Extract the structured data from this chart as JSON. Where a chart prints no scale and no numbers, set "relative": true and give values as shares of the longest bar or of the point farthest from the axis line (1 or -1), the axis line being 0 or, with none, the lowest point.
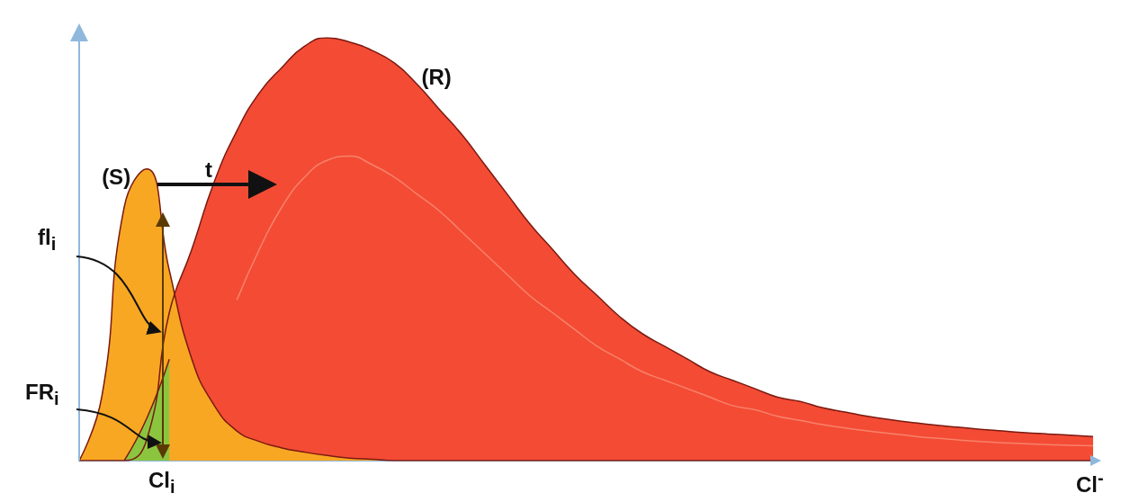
{
  "chart_data": {
    "type": "area",
    "relative": true,
    "xlabel": "Cl$^{-}$",
    "marker": "none",
    "categories": [
      null,
      null,
      null,
      null,
      null,
      null,
      null,
      null,
      null,
      null,
      null,
      null,
      null,
      null,
      null,
      null,
      null,
      null,
      null,
      null,
      null,
      null,
      null,
      null,
      null,
      null,
      null,
      null,
      null,
      null,
      null,
      null,
      null,
      null,
      null,
      null,
      null,
      null,
      null,
      null,
      null,
      null,
      null,
      null,
      null,
      null
    ],
    "series": [
      {
        "name": "(R)",
        "color": "#f44b35",
        "values": [
          0,
          0,
          0,
          0.05,
          0.35,
          0.5,
          0.66,
          0.78,
          0.87,
          0.93,
          0.98,
          1,
          0.99,
          0.97,
          0.94,
          0.89,
          0.83,
          0.77,
          0.7,
          0.63,
          0.56,
          0.5,
          0.44,
          0.39,
          0.34,
          0.3,
          0.27,
          0.24,
          0.21,
          0.19,
          0.17,
          0.15,
          0.14,
          0.125,
          0.115,
          0.105,
          0.097,
          0.09,
          0.084,
          0.079,
          0.074,
          0.07,
          0.066,
          0.063,
          0.06,
          0.057
        ]
      },
      {
        "type": "line",
        "color": "#f7836a",
        "values": [
          null,
          null,
          null,
          null,
          null,
          null,
          null,
          0.38,
          0.5,
          0.6,
          0.67,
          0.71,
          0.72,
          0.7,
          0.67,
          0.63,
          0.59,
          0.54,
          0.49,
          0.44,
          0.39,
          0.35,
          0.31,
          0.27,
          0.24,
          0.21,
          0.19,
          0.17,
          0.15,
          0.13,
          0.12,
          0.105,
          0.095,
          0.085,
          0.077,
          0.07,
          0.064,
          0.058,
          0.053,
          0.049,
          0.045,
          0.042,
          0.04,
          0.038,
          0.036,
          0.035
        ]
      },
      {
        "name": "(S)",
        "color": "#f8a723",
        "values": [
          0,
          0.15,
          0.6,
          0.69,
          0.45,
          0.24,
          0.13,
          0.07,
          0.045,
          0.03,
          0.02,
          0.012,
          0.006,
          0.003,
          0,
          0,
          0,
          0,
          0,
          0,
          0,
          0,
          0,
          0,
          0,
          0,
          0,
          0,
          0,
          0,
          0,
          0,
          0,
          0,
          0,
          0,
          0,
          0,
          0,
          0,
          0,
          0,
          0,
          0,
          0,
          0
        ]
      },
      {
        "color": "#8bc540",
        "values": [
          null,
          null,
          0,
          0.1,
          0.24,
          null,
          null,
          null,
          null,
          null,
          null,
          null,
          null,
          null,
          null,
          null,
          null,
          null,
          null,
          null,
          null,
          null,
          null,
          null,
          null,
          null,
          null,
          null,
          null,
          null,
          null,
          null,
          null,
          null,
          null,
          null,
          null,
          null,
          null,
          null,
          null,
          null,
          null,
          null,
          null,
          null
        ]
      }
    ],
    "annotations": [
      "t",
      "fl$_{i}$",
      "FR$_{i}$",
      "Cl$_{i}$"
    ]
  }
}
